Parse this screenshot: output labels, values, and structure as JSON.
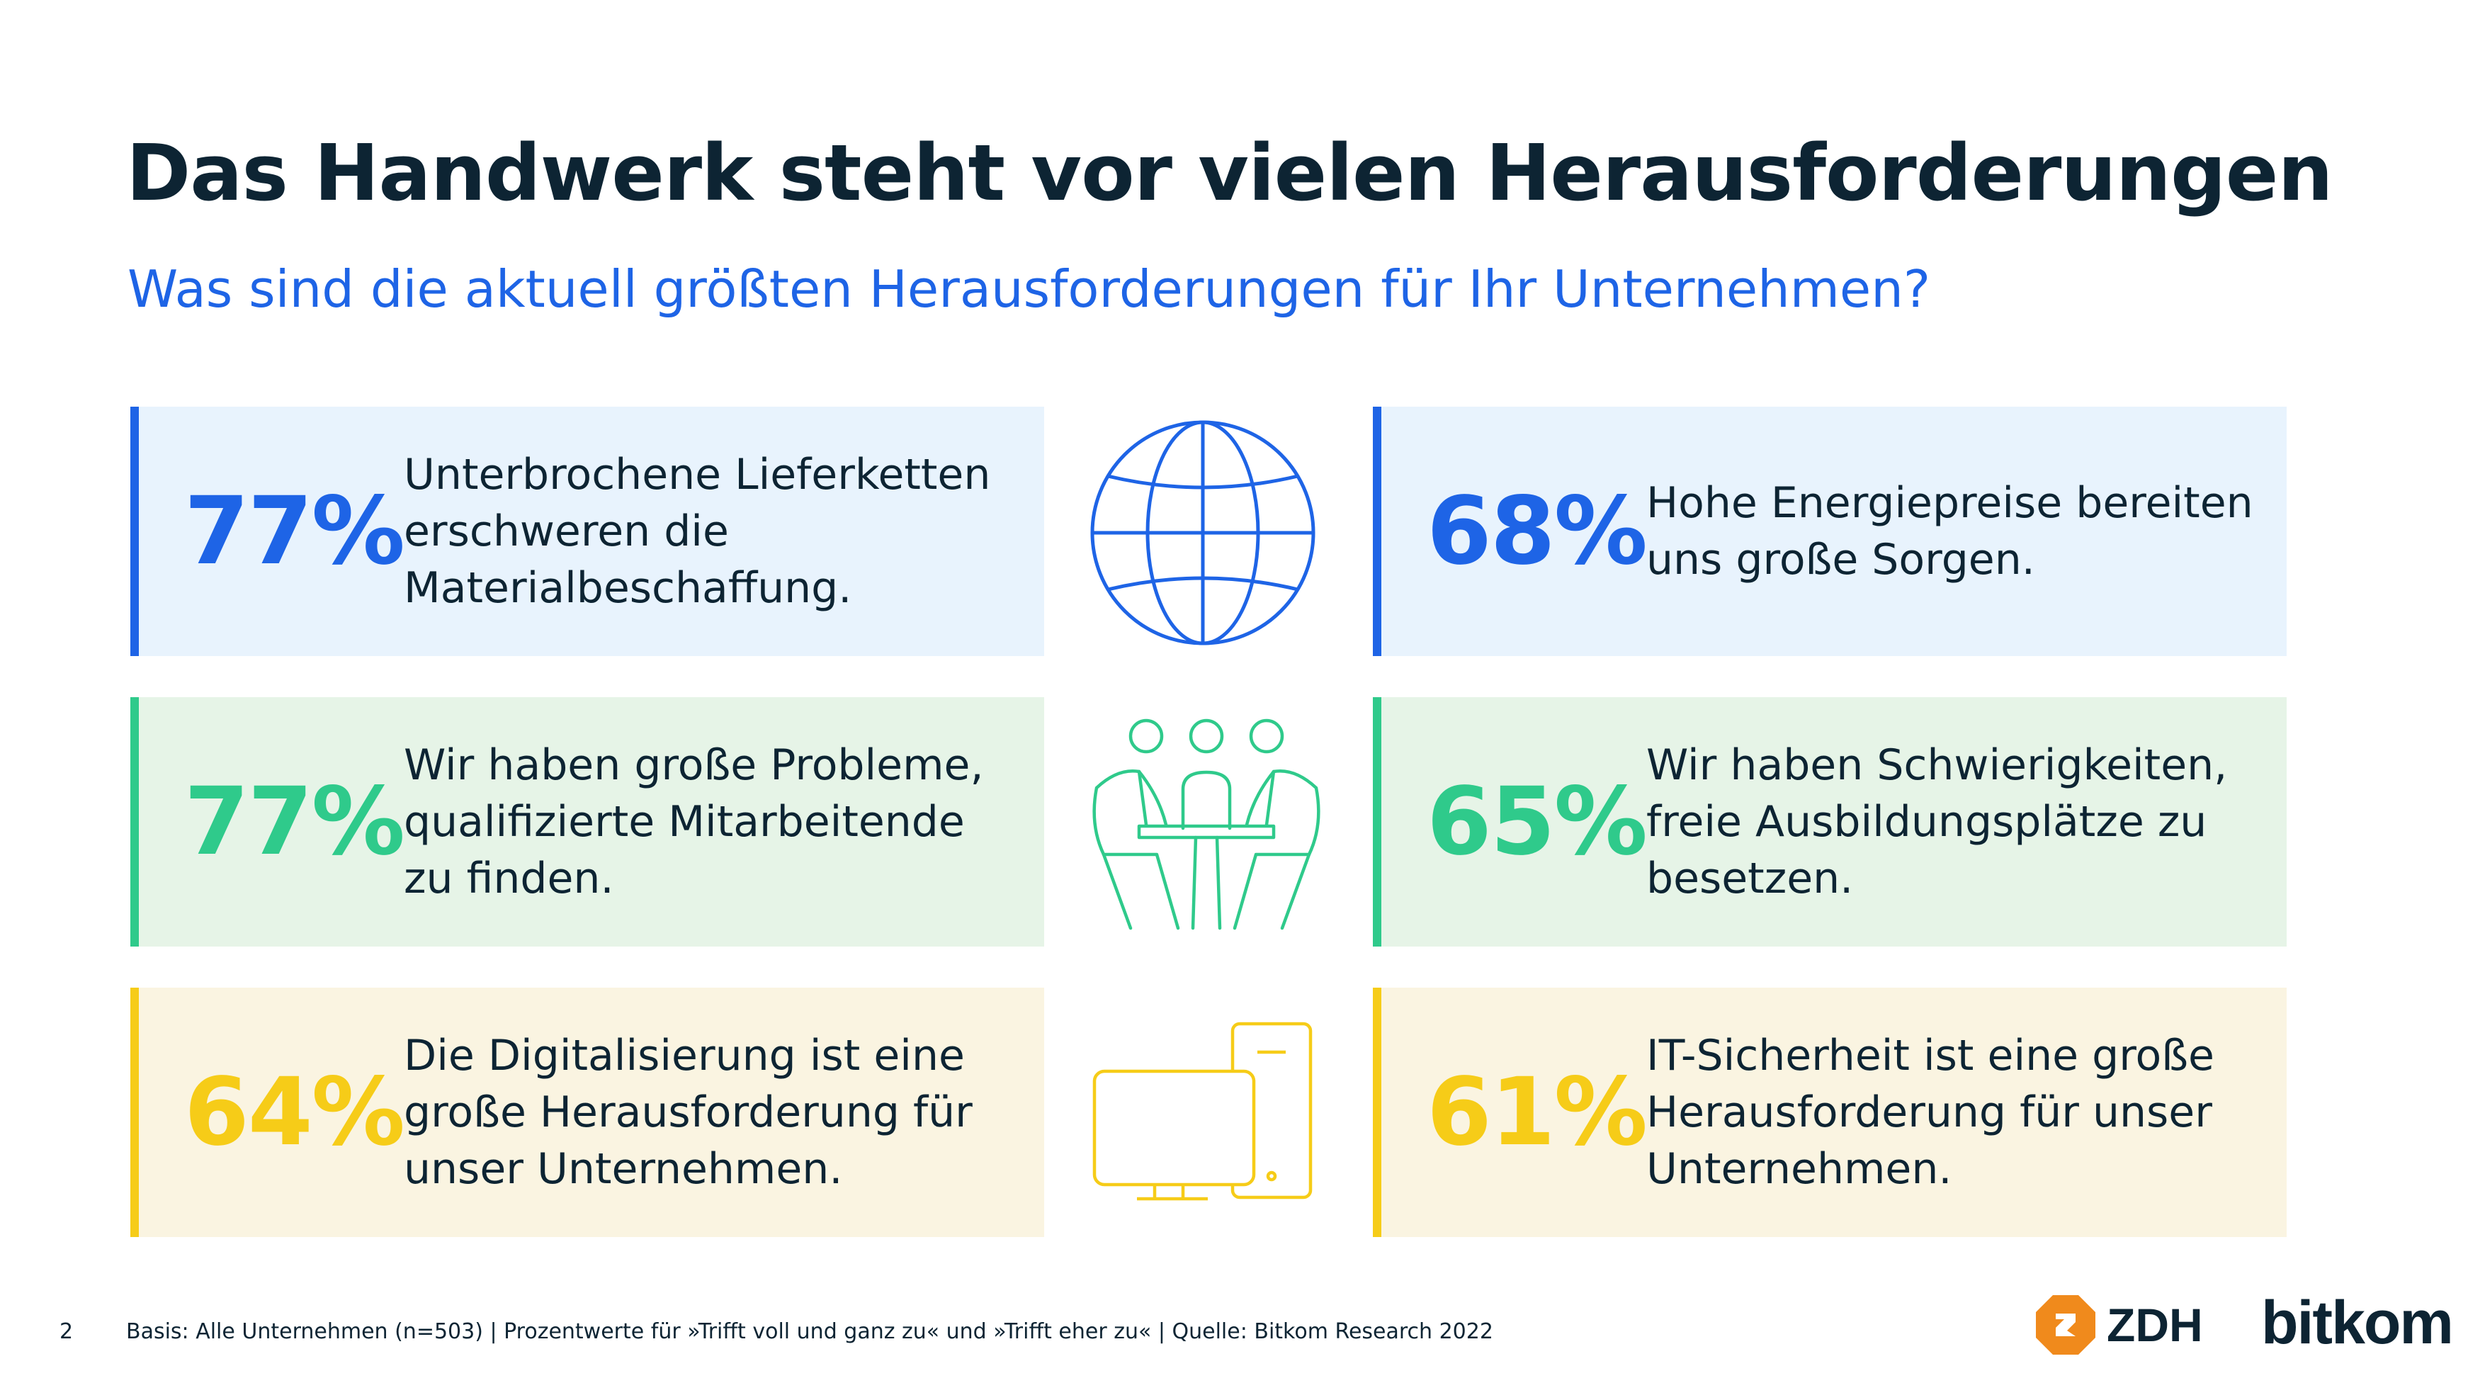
{
  "header": {
    "title": "Das Handwerk steht vor vielen Herausforderungen",
    "subtitle": "Was sind die aktuell größten Herausforderungen für Ihr Unternehmen?"
  },
  "cards": [
    {
      "percent": "77%",
      "text": "Unterbrochene Lieferketten erschweren die Materialbeschaffung.",
      "color": "#1e64e6"
    },
    {
      "percent": "68%",
      "text": "Hohe Energiepreise bereiten uns große Sorgen.",
      "color": "#1e64e6"
    },
    {
      "percent": "77%",
      "text": "Wir haben große Probleme, qualifizierte Mitarbeitende zu finden.",
      "color": "#2fca8b"
    },
    {
      "percent": "65%",
      "text": "Wir haben Schwierigkeiten, freie Ausbildungsplätze zu besetzen.",
      "color": "#2fca8b"
    },
    {
      "percent": "64%",
      "text": "Die Digitalisierung ist eine große Herausforderung für unser Unternehmen.",
      "color": "#f6cc18"
    },
    {
      "percent": "61%",
      "text": "IT-Sicherheit ist eine große Herausforderung für unser Unternehmen.",
      "color": "#f6cc18"
    }
  ],
  "icons": [
    "globe-icon",
    "team-meeting-icon",
    "computer-devices-icon"
  ],
  "footer": {
    "page_number": "2",
    "source": "Basis: Alle Unternehmen (n=503) | Prozentwerte für »Trifft voll und ganz zu« und »Trifft eher zu« | Quelle: Bitkom Research 2022"
  },
  "logos": {
    "zdh": "ZDH",
    "bitkom": "bitkom",
    "zdh_color": "#f08a1c"
  }
}
